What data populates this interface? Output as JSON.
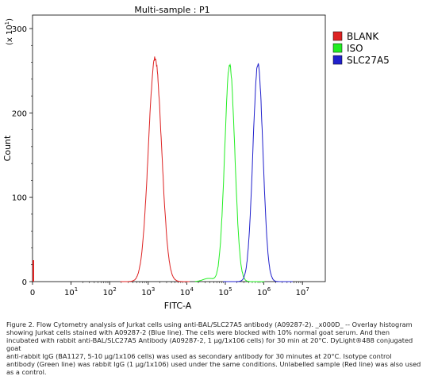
{
  "chart_data": {
    "type": "area",
    "title": "Multi-sample : P1",
    "xlabel": "FITC-A",
    "ylabel": "Count",
    "y_multiplier_label": "(x 10",
    "y_multiplier_exponent": "1",
    "x_scale": "log",
    "xlim": [
      0,
      10000000
    ],
    "ylim": [
      0,
      300
    ],
    "x_tick_labels": [
      {
        "base": "0",
        "exp": ""
      },
      {
        "base": "10",
        "exp": "1"
      },
      {
        "base": "10",
        "exp": "2"
      },
      {
        "base": "10",
        "exp": "3"
      },
      {
        "base": "10",
        "exp": "4"
      },
      {
        "base": "10",
        "exp": "5"
      },
      {
        "base": "10",
        "exp": "6"
      },
      {
        "base": "10",
        "exp": "7"
      }
    ],
    "y_tick_labels": [
      "0",
      "100",
      "200",
      "300"
    ],
    "legend_position": "right",
    "series": [
      {
        "name": "BLANK",
        "color": "#dd2222",
        "peak_x": 1500,
        "peak_count": 265,
        "log_sd": 0.17
      },
      {
        "name": "ISO",
        "color": "#22ee22",
        "peak_x": 130000,
        "peak_count": 257,
        "log_sd": 0.13
      },
      {
        "name": "SLC27A5",
        "color": "#2020cc",
        "peak_x": 700000,
        "peak_count": 257,
        "log_sd": 0.13
      }
    ]
  },
  "caption": {
    "lines": [
      "Figure 2. Flow Cytometry analysis of Jurkat cells using anti-BAL/SLC27A5 antibody (A09287-2). _x000D_ -- Overlay histogram",
      "showing Jurkat cells stained with A09287-2 (Blue line). The cells were blocked with 10% normal goat serum. And then",
      "incubated with rabbit anti-BAL/SLC27A5 Antibody (A09287-2, 1 μg/1x106 cells) for 30 min at 20°C. DyLight®488 conjugated goat",
      "anti-rabbit IgG (BA1127, 5-10 μg/1x106 cells) was used as secondary antibody for 30 minutes at 20°C. Isotype control",
      "antibody (Green line) was rabbit IgG (1 μg/1x106) used under the same conditions. Unlabelled sample (Red line) was also used",
      "as a control."
    ]
  }
}
